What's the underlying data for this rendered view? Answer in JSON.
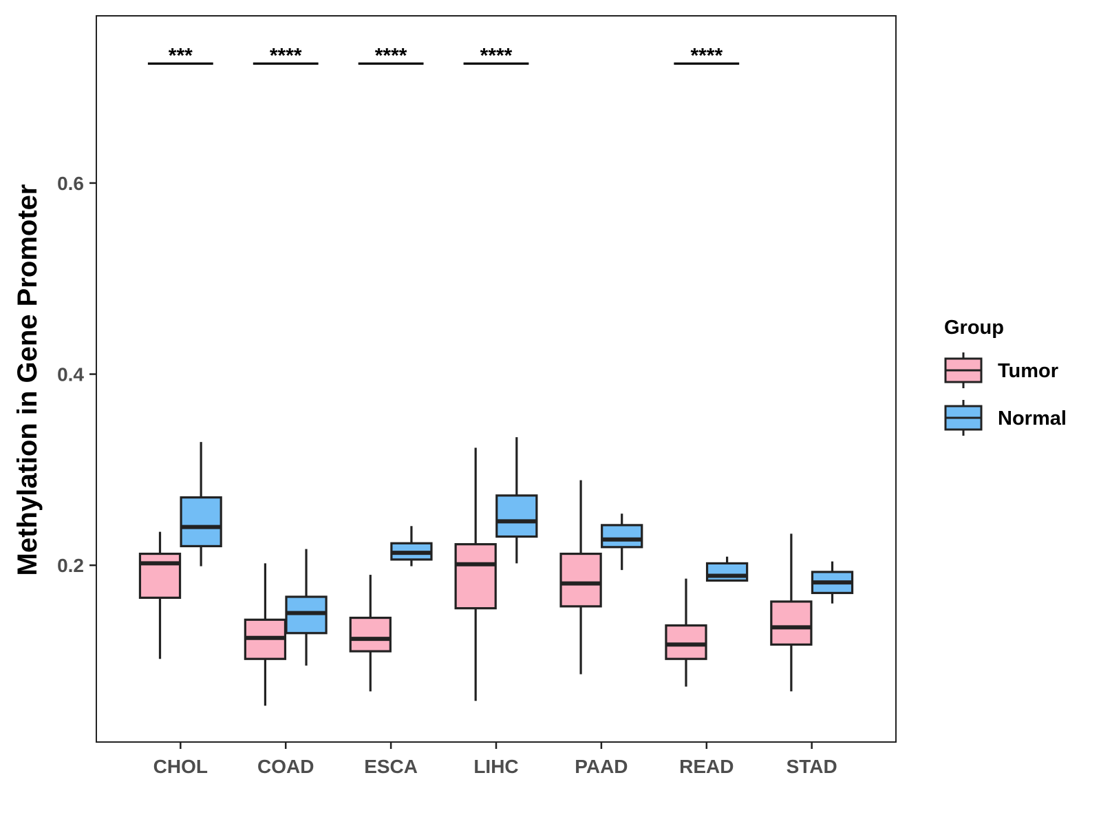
{
  "chart_data": {
    "type": "boxplot",
    "title": "",
    "xlabel": "",
    "ylabel": "Methylation in Gene Promoter",
    "ylim": [
      0.015,
      0.775
    ],
    "yticks": [
      0.2,
      0.4,
      0.6
    ],
    "ytick_labels": [
      "0.2",
      "0.4",
      "0.6"
    ],
    "categories": [
      "CHOL",
      "COAD",
      "ESCA",
      "LIHC",
      "PAAD",
      "READ",
      "STAD"
    ],
    "grid": false,
    "legend": {
      "title": "Group",
      "position": "right",
      "entries": [
        "Tumor",
        "Normal"
      ]
    },
    "series": [
      {
        "name": "Tumor",
        "color": "#FBB1C3",
        "boxes": [
          {
            "min": 0.102,
            "q1": 0.166,
            "median": 0.202,
            "q3": 0.212,
            "max": 0.235
          },
          {
            "min": 0.053,
            "q1": 0.102,
            "median": 0.124,
            "q3": 0.143,
            "max": 0.202
          },
          {
            "min": 0.068,
            "q1": 0.11,
            "median": 0.123,
            "q3": 0.145,
            "max": 0.19
          },
          {
            "min": 0.058,
            "q1": 0.155,
            "median": 0.201,
            "q3": 0.222,
            "max": 0.323
          },
          {
            "min": 0.086,
            "q1": 0.157,
            "median": 0.181,
            "q3": 0.212,
            "max": 0.289
          },
          {
            "min": 0.073,
            "q1": 0.102,
            "median": 0.117,
            "q3": 0.137,
            "max": 0.186
          },
          {
            "min": 0.068,
            "q1": 0.117,
            "median": 0.135,
            "q3": 0.162,
            "max": 0.233
          }
        ]
      },
      {
        "name": "Normal",
        "color": "#72BDF5",
        "boxes": [
          {
            "min": 0.199,
            "q1": 0.22,
            "median": 0.24,
            "q3": 0.271,
            "max": 0.329
          },
          {
            "min": 0.095,
            "q1": 0.129,
            "median": 0.15,
            "q3": 0.167,
            "max": 0.217
          },
          {
            "min": 0.199,
            "q1": 0.206,
            "median": 0.213,
            "q3": 0.223,
            "max": 0.241
          },
          {
            "min": 0.202,
            "q1": 0.23,
            "median": 0.246,
            "q3": 0.273,
            "max": 0.334
          },
          {
            "min": 0.195,
            "q1": 0.219,
            "median": 0.227,
            "q3": 0.242,
            "max": 0.254
          },
          {
            "min": 0.183,
            "q1": 0.184,
            "median": 0.189,
            "q3": 0.202,
            "max": 0.209
          },
          {
            "min": 0.16,
            "q1": 0.171,
            "median": 0.182,
            "q3": 0.193,
            "max": 0.204
          }
        ]
      }
    ],
    "annotations": [
      {
        "category": "CHOL",
        "text": "***"
      },
      {
        "category": "COAD",
        "text": "****"
      },
      {
        "category": "ESCA",
        "text": "****"
      },
      {
        "category": "LIHC",
        "text": "****"
      },
      {
        "category": "READ",
        "text": "****"
      }
    ]
  }
}
